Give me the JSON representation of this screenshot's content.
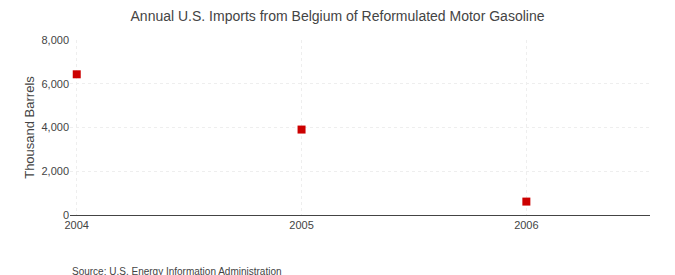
{
  "chart_data": {
    "type": "scatter",
    "title": "Annual U.S. Imports from Belgium of Reformulated Motor Gasoline",
    "ylabel": "Thousand Barrels",
    "annotations": [
      "Source: U.S. Energy Information Administration"
    ],
    "x": [
      2004,
      2005,
      2006
    ],
    "values": [
      6432,
      3906,
      613
    ],
    "color": "#cc0000",
    "marker": "square",
    "xlim": [
      2003.97,
      2006.55
    ],
    "xticks": [
      2004,
      2005,
      2006
    ],
    "ylim": [
      0,
      8000
    ],
    "yticks": [
      {
        "value": 0,
        "label": "0"
      },
      {
        "value": 2000,
        "label": "2,000"
      },
      {
        "value": 4000,
        "label": "4,000"
      },
      {
        "value": 6000,
        "label": "6,000"
      },
      {
        "value": 8000,
        "label": "8,000"
      }
    ],
    "grid": true
  }
}
